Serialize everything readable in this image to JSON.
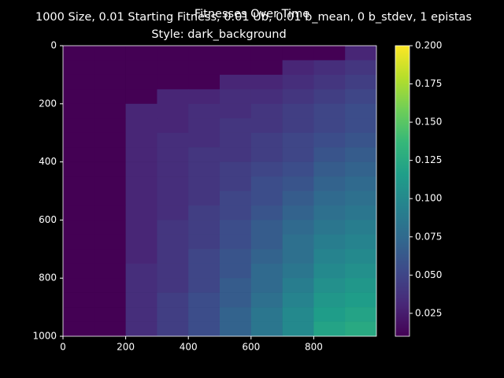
{
  "chart_data": {
    "type": "heatmap",
    "title": "Fitnesses Over Time",
    "suptitle": "1000 Size, 0.01 Starting Fitness, 0.01 Ub, 0.01 b_mean, 0 b_stdev, 1 epistas",
    "subtitle": "Style: dark_background",
    "colormap": "viridis",
    "xlim": [
      0,
      1000
    ],
    "ylim": [
      1000,
      0
    ],
    "xticks": [
      0,
      200,
      400,
      600,
      800
    ],
    "yticks": [
      0,
      200,
      400,
      600,
      800,
      1000
    ],
    "x_edges": [
      0,
      100,
      200,
      300,
      400,
      500,
      600,
      700,
      800,
      900,
      1000
    ],
    "y_edges": [
      0,
      50,
      100,
      150,
      200,
      250,
      300,
      350,
      400,
      450,
      500,
      550,
      600,
      650,
      700,
      750,
      800,
      850,
      900,
      950,
      1000
    ],
    "values": [
      [
        0.01,
        0.01,
        0.01,
        0.01,
        0.01,
        0.01,
        0.01,
        0.01,
        0.01,
        0.03
      ],
      [
        0.01,
        0.01,
        0.01,
        0.01,
        0.01,
        0.01,
        0.01,
        0.03,
        0.035,
        0.04
      ],
      [
        0.01,
        0.01,
        0.01,
        0.01,
        0.01,
        0.03,
        0.03,
        0.035,
        0.04,
        0.045
      ],
      [
        0.01,
        0.01,
        0.01,
        0.03,
        0.03,
        0.035,
        0.035,
        0.04,
        0.045,
        0.05
      ],
      [
        0.01,
        0.01,
        0.03,
        0.03,
        0.035,
        0.035,
        0.04,
        0.045,
        0.05,
        0.055
      ],
      [
        0.01,
        0.01,
        0.03,
        0.03,
        0.035,
        0.04,
        0.04,
        0.045,
        0.05,
        0.055
      ],
      [
        0.01,
        0.01,
        0.03,
        0.035,
        0.035,
        0.04,
        0.045,
        0.05,
        0.055,
        0.06
      ],
      [
        0.01,
        0.01,
        0.03,
        0.035,
        0.04,
        0.04,
        0.045,
        0.05,
        0.06,
        0.065
      ],
      [
        0.01,
        0.01,
        0.03,
        0.035,
        0.04,
        0.045,
        0.05,
        0.055,
        0.065,
        0.07
      ],
      [
        0.01,
        0.01,
        0.03,
        0.035,
        0.04,
        0.045,
        0.055,
        0.06,
        0.07,
        0.075
      ],
      [
        0.01,
        0.01,
        0.03,
        0.035,
        0.04,
        0.05,
        0.055,
        0.065,
        0.075,
        0.08
      ],
      [
        0.01,
        0.01,
        0.03,
        0.035,
        0.045,
        0.05,
        0.06,
        0.07,
        0.08,
        0.085
      ],
      [
        0.01,
        0.01,
        0.03,
        0.04,
        0.045,
        0.055,
        0.065,
        0.075,
        0.085,
        0.09
      ],
      [
        0.01,
        0.01,
        0.03,
        0.04,
        0.045,
        0.055,
        0.065,
        0.08,
        0.09,
        0.095
      ],
      [
        0.01,
        0.01,
        0.03,
        0.04,
        0.05,
        0.06,
        0.07,
        0.08,
        0.095,
        0.1
      ],
      [
        0.01,
        0.01,
        0.035,
        0.04,
        0.05,
        0.06,
        0.075,
        0.085,
        0.1,
        0.105
      ],
      [
        0.01,
        0.01,
        0.035,
        0.04,
        0.05,
        0.065,
        0.075,
        0.09,
        0.105,
        0.11
      ],
      [
        0.01,
        0.01,
        0.035,
        0.045,
        0.055,
        0.065,
        0.08,
        0.095,
        0.11,
        0.115
      ],
      [
        0.01,
        0.01,
        0.035,
        0.045,
        0.055,
        0.07,
        0.085,
        0.1,
        0.115,
        0.12
      ],
      [
        0.01,
        0.01,
        0.035,
        0.045,
        0.055,
        0.07,
        0.085,
        0.1,
        0.12,
        0.125
      ]
    ],
    "clim": [
      0.01,
      0.2
    ],
    "cticks": [
      0.025,
      {
        "value": 0.05,
        "label": "0.050"
      },
      0.075,
      {
        "value": 0.1,
        "label": "0.100"
      },
      0.125,
      {
        "value": 0.15,
        "label": "0.150"
      },
      0.175,
      {
        "value": 0.2,
        "label": "0.200"
      }
    ]
  }
}
